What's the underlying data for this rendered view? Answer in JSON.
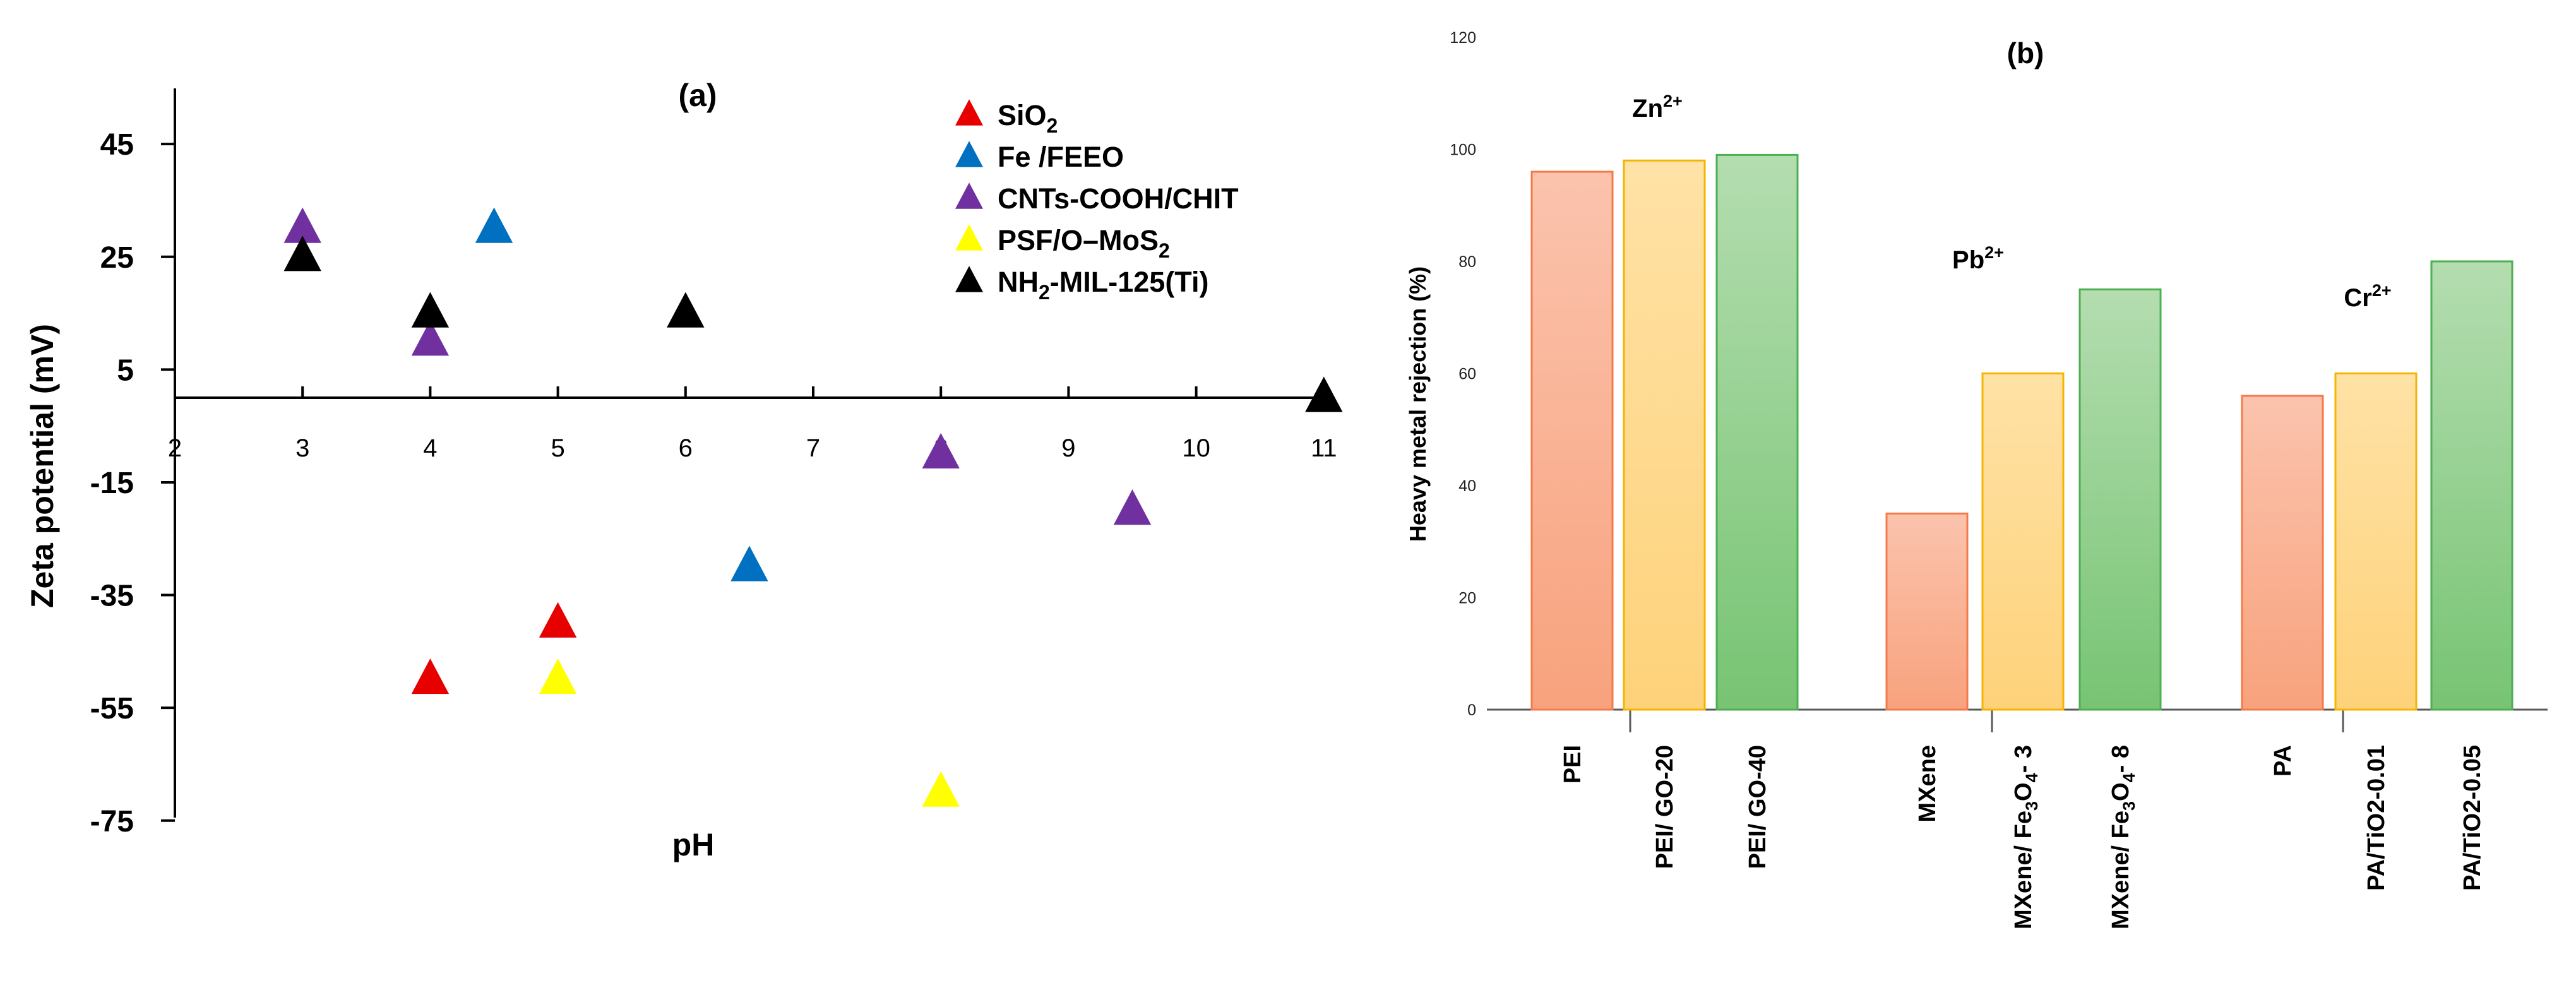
{
  "chart_data": [
    {
      "type": "scatter",
      "panel_label": "(a)",
      "xlabel": "pH",
      "ylabel": "Zeta potential (mV)",
      "xlim": [
        2,
        11
      ],
      "ylim": [
        -75,
        55
      ],
      "x_ticks": [
        2,
        3,
        4,
        5,
        6,
        7,
        8,
        9,
        10,
        11
      ],
      "y_ticks": [
        45,
        25,
        5,
        -15,
        -35,
        -55,
        -75
      ],
      "legend_position": "top-right",
      "marker": "triangle",
      "series": [
        {
          "name": "SiO2",
          "name_main": "SiO",
          "name_sub": "2",
          "name_tail": "",
          "color": "#e60000",
          "points": [
            {
              "x": 4,
              "y": -50
            },
            {
              "x": 5,
              "y": -40
            }
          ]
        },
        {
          "name": "Fe /FEEO",
          "name_main": "Fe /FEEO",
          "name_sub": "",
          "name_tail": "",
          "color": "#0070c0",
          "points": [
            {
              "x": 4.5,
              "y": 30
            },
            {
              "x": 6.5,
              "y": -30
            }
          ]
        },
        {
          "name": "CNTs-COOH/CHIT",
          "name_main": "CNTs-COOH/CHIT",
          "name_sub": "",
          "name_tail": "",
          "color": "#7030a0",
          "points": [
            {
              "x": 3,
              "y": 30
            },
            {
              "x": 4,
              "y": 10
            },
            {
              "x": 8,
              "y": -10
            },
            {
              "x": 9.5,
              "y": -20
            }
          ]
        },
        {
          "name": "PSF/O–MoS2",
          "name_main": "PSF/O–MoS",
          "name_sub": "2",
          "name_tail": "",
          "color": "#ffff00",
          "points": [
            {
              "x": 5,
              "y": -50
            },
            {
              "x": 8,
              "y": -70
            }
          ]
        },
        {
          "name": "NH2-MIL-125(Ti)",
          "name_main": "NH",
          "name_sub": "2",
          "name_tail": "-MIL-125(Ti)",
          "color": "#000000",
          "points": [
            {
              "x": 3,
              "y": 25
            },
            {
              "x": 4,
              "y": 15
            },
            {
              "x": 6,
              "y": 15
            },
            {
              "x": 11,
              "y": 0
            }
          ]
        }
      ]
    },
    {
      "type": "bar",
      "panel_label": "(b)",
      "ylabel": "Heavy metal rejection (%)",
      "ylim": [
        0,
        120
      ],
      "y_ticks": [
        0,
        20,
        40,
        60,
        80,
        100,
        120
      ],
      "groups": [
        {
          "ion_main": "Zn",
          "ion_sup": "2+",
          "bars": [
            {
              "label": "PEI",
              "value": 96,
              "style": "orange"
            },
            {
              "label": "PEI/ GO-20",
              "value": 98,
              "style": "yellow"
            },
            {
              "label": "PEI/ GO-40",
              "value": 99,
              "style": "green"
            }
          ]
        },
        {
          "ion_main": "Pb",
          "ion_sup": "2+",
          "bars": [
            {
              "label": "MXene",
              "value": 35,
              "style": "orange"
            },
            {
              "label": "MXene/ Fe3O4- 3",
              "value": 60,
              "style": "yellow"
            },
            {
              "label": "MXene/ Fe3O4- 8",
              "value": 75,
              "style": "green"
            }
          ]
        },
        {
          "ion_main": "Cr",
          "ion_sup": "2+",
          "bars": [
            {
              "label": "PA",
              "value": 56,
              "style": "orange"
            },
            {
              "label": "PA/TiO2-0.01",
              "value": 60,
              "style": "yellow"
            },
            {
              "label": "PA/TiO2-0.05",
              "value": 80,
              "style": "green"
            }
          ]
        }
      ]
    }
  ],
  "colors": {
    "orange_top": "#fbc3ad",
    "orange_bottom": "#f8a27d",
    "orange_edge": "#f47a4a",
    "yellow_top": "#ffe2a6",
    "yellow_bottom": "#fed27a",
    "yellow_edge": "#f4b400",
    "green_top": "#b4ddb0",
    "green_bottom": "#77c473",
    "green_edge": "#4caf50"
  }
}
